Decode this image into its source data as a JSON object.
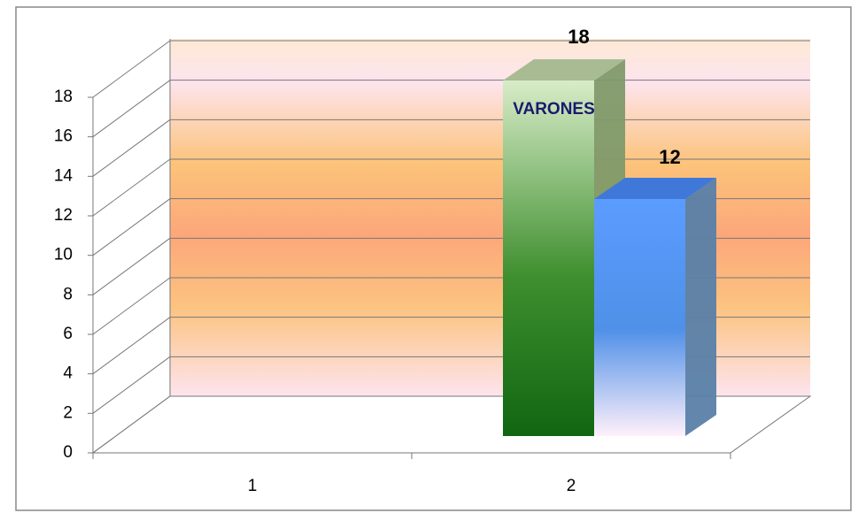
{
  "chart_data": {
    "type": "bar3d",
    "categories": [
      "1",
      "2"
    ],
    "series": [
      {
        "name": "VARONES",
        "color": "#3f8f2f",
        "values": [
          null,
          18
        ]
      },
      {
        "color": "#4f90e8",
        "values": [
          null,
          12
        ]
      }
    ],
    "ylim": [
      0,
      18
    ],
    "yticks": [
      0,
      2,
      4,
      6,
      8,
      10,
      12,
      14,
      16,
      18
    ],
    "grid": true
  }
}
